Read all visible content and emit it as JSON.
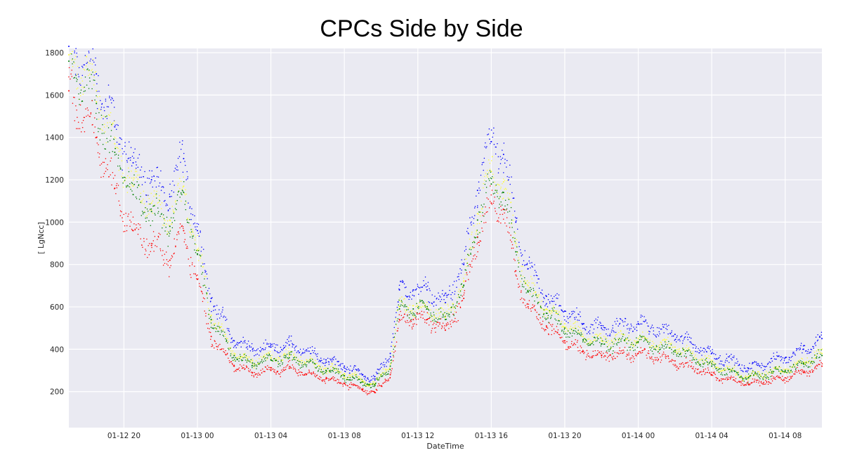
{
  "chart_data": {
    "type": "scatter",
    "title": "CPCs Side by Side",
    "xlabel": "DateTime",
    "ylabel": "[ LgNcc]",
    "x_range": [
      "01-12 17:00",
      "01-14 10:00"
    ],
    "ylim": [
      30,
      1820
    ],
    "x_ticks": [
      {
        "label": "01-12 20",
        "t": "01-12 20:00"
      },
      {
        "label": "01-13 00",
        "t": "01-13 00:00"
      },
      {
        "label": "01-13 04",
        "t": "01-13 04:00"
      },
      {
        "label": "01-13 08",
        "t": "01-13 08:00"
      },
      {
        "label": "01-13 12",
        "t": "01-13 12:00"
      },
      {
        "label": "01-13 16",
        "t": "01-13 16:00"
      },
      {
        "label": "01-13 20",
        "t": "01-13 20:00"
      },
      {
        "label": "01-14 00",
        "t": "01-14 00:00"
      },
      {
        "label": "01-14 04",
        "t": "01-14 04:00"
      },
      {
        "label": "01-14 08",
        "t": "01-14 08:00"
      }
    ],
    "y_ticks": [
      200,
      400,
      600,
      800,
      1000,
      1200,
      1400,
      1600,
      1800
    ],
    "grid": true,
    "background": "#eaeaf2",
    "series": [
      {
        "color": "#0000ff",
        "x": [
          "01-12 17:00",
          "01-12 18:30",
          "01-12 19:30",
          "01-12 20:30",
          "01-12 21:30",
          "01-12 22:30",
          "01-12 23:15",
          "01-13 00:00",
          "01-13 00:45",
          "01-13 02:00",
          "01-13 03:00",
          "01-13 04:00",
          "01-13 05:00",
          "01-13 07:00",
          "01-13 08:00",
          "01-13 09:00",
          "01-13 09:40",
          "01-13 10:30",
          "01-13 11:00",
          "01-13 11:45",
          "01-13 12:30",
          "01-13 13:30",
          "01-13 14:30",
          "01-13 15:15",
          "01-13 16:00",
          "01-13 16:40",
          "01-13 17:20",
          "01-13 18:00",
          "01-13 19:00",
          "01-13 20:00",
          "01-13 21:00",
          "01-13 22:00",
          "01-14 00:00",
          "01-14 02:00",
          "01-14 04:00",
          "01-14 06:00",
          "01-14 08:00",
          "01-14 09:00",
          "01-14 10:00"
        ],
        "y": [
          1830,
          1700,
          1450,
          1280,
          1200,
          1120,
          1300,
          960,
          640,
          440,
          400,
          410,
          420,
          350,
          320,
          280,
          260,
          380,
          680,
          680,
          680,
          620,
          800,
          1150,
          1380,
          1320,
          1000,
          780,
          650,
          580,
          520,
          500,
          520,
          470,
          380,
          310,
          360,
          400,
          450
        ]
      },
      {
        "color": "#ffff33",
        "x": [
          "01-12 17:00",
          "01-12 18:30",
          "01-12 19:30",
          "01-12 20:30",
          "01-12 21:30",
          "01-12 22:30",
          "01-12 23:15",
          "01-13 00:00",
          "01-13 00:45",
          "01-13 02:00",
          "01-13 03:00",
          "01-13 04:00",
          "01-13 05:00",
          "01-13 07:00",
          "01-13 08:00",
          "01-13 09:00",
          "01-13 09:40",
          "01-13 10:30",
          "01-13 11:00",
          "01-13 11:45",
          "01-13 12:30",
          "01-13 13:30",
          "01-13 14:30",
          "01-13 15:15",
          "01-13 16:00",
          "01-13 16:40",
          "01-13 17:20",
          "01-13 18:00",
          "01-13 19:00",
          "01-13 20:00",
          "01-13 21:00",
          "01-13 22:00",
          "01-14 00:00",
          "01-14 02:00",
          "01-14 04:00",
          "01-14 06:00",
          "01-14 08:00",
          "01-14 09:00",
          "01-14 10:00"
        ],
        "y": [
          1790,
          1620,
          1370,
          1170,
          1090,
          1010,
          1170,
          870,
          560,
          380,
          345,
          360,
          370,
          310,
          285,
          250,
          235,
          330,
          600,
          605,
          600,
          550,
          720,
          1040,
          1240,
          1190,
          900,
          700,
          590,
          520,
          460,
          440,
          450,
          410,
          330,
          270,
          305,
          340,
          380
        ]
      },
      {
        "color": "#008000",
        "x": [
          "01-12 17:00",
          "01-12 18:30",
          "01-12 19:30",
          "01-12 20:30",
          "01-12 21:30",
          "01-12 22:30",
          "01-12 23:15",
          "01-13 00:00",
          "01-13 00:45",
          "01-13 02:00",
          "01-13 03:00",
          "01-13 04:00",
          "01-13 05:00",
          "01-13 07:00",
          "01-13 08:00",
          "01-13 09:00",
          "01-13 09:40",
          "01-13 10:30",
          "01-13 11:00",
          "01-13 11:45",
          "01-13 12:30",
          "01-13 13:30",
          "01-13 14:30",
          "01-13 15:15",
          "01-13 16:00",
          "01-13 16:40",
          "01-13 17:20",
          "01-13 18:00",
          "01-13 19:00",
          "01-13 20:00",
          "01-13 21:00",
          "01-13 22:00",
          "01-14 00:00",
          "01-14 02:00",
          "01-14 04:00",
          "01-14 06:00",
          "01-14 08:00",
          "01-14 09:00",
          "01-14 10:00"
        ],
        "y": [
          1760,
          1560,
          1330,
          1130,
          1050,
          980,
          1140,
          850,
          540,
          370,
          335,
          350,
          360,
          300,
          275,
          245,
          230,
          320,
          590,
          590,
          590,
          540,
          700,
          1010,
          1180,
          1140,
          860,
          670,
          570,
          500,
          445,
          425,
          435,
          395,
          320,
          265,
          300,
          330,
          370
        ]
      },
      {
        "color": "#ff0000",
        "x": [
          "01-12 17:00",
          "01-12 18:30",
          "01-12 19:30",
          "01-12 20:30",
          "01-12 21:30",
          "01-12 22:30",
          "01-12 23:15",
          "01-13 00:00",
          "01-13 00:45",
          "01-13 02:00",
          "01-13 03:00",
          "01-13 04:00",
          "01-13 05:00",
          "01-13 07:00",
          "01-13 08:00",
          "01-13 09:00",
          "01-13 09:40",
          "01-13 10:30",
          "01-13 11:00",
          "01-13 11:45",
          "01-13 12:30",
          "01-13 13:30",
          "01-13 14:30",
          "01-13 15:15",
          "01-13 16:00",
          "01-13 16:40",
          "01-13 17:20",
          "01-13 18:00",
          "01-13 19:00",
          "01-13 20:00",
          "01-13 21:00",
          "01-13 22:00",
          "01-14 00:00",
          "01-14 02:00",
          "01-14 04:00",
          "01-14 06:00",
          "01-14 08:00",
          "01-14 09:00",
          "01-14 10:00"
        ],
        "y": [
          1620,
          1400,
          1160,
          960,
          890,
          820,
          960,
          730,
          460,
          320,
          290,
          300,
          310,
          260,
          240,
          210,
          195,
          280,
          540,
          540,
          540,
          490,
          640,
          930,
          1090,
          1060,
          770,
          600,
          510,
          440,
          390,
          370,
          380,
          345,
          280,
          235,
          265,
          290,
          320
        ]
      }
    ]
  }
}
